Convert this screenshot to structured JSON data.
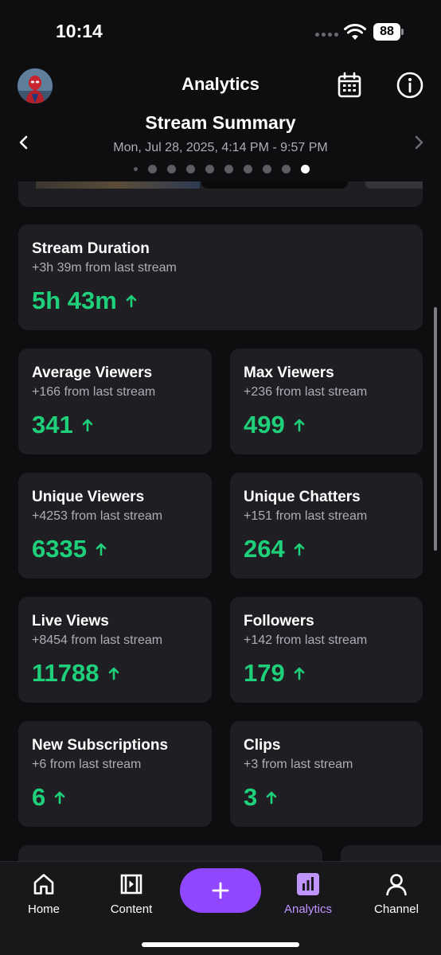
{
  "status_bar": {
    "time": "10:14",
    "battery": "88"
  },
  "header": {
    "title": "Analytics"
  },
  "summary": {
    "title": "Stream Summary",
    "date": "Mon, Jul 28, 2025, 4:14 PM - 9:57 PM",
    "page_count": 10,
    "active_page": 10
  },
  "stats": {
    "duration": {
      "label": "Stream Duration",
      "sub": "+3h 39m from last stream",
      "value": "5h 43m"
    },
    "avg_viewers": {
      "label": "Average Viewers",
      "sub": "+166 from last stream",
      "value": "341"
    },
    "max_viewers": {
      "label": "Max Viewers",
      "sub": "+236 from last stream",
      "value": "499"
    },
    "unique_viewers": {
      "label": "Unique Viewers",
      "sub": "+4253 from last stream",
      "value": "6335"
    },
    "unique_chatters": {
      "label": "Unique Chatters",
      "sub": "+151 from last stream",
      "value": "264"
    },
    "live_views": {
      "label": "Live Views",
      "sub": "+8454 from last stream",
      "value": "11788"
    },
    "followers": {
      "label": "Followers",
      "sub": "+142 from last stream",
      "value": "179"
    },
    "new_subs": {
      "label": "New Subscriptions",
      "sub": "+6 from last stream",
      "value": "6"
    },
    "clips": {
      "label": "Clips",
      "sub": "+3 from last stream",
      "value": "3"
    }
  },
  "tabs": {
    "home": "Home",
    "content": "Content",
    "analytics": "Analytics",
    "channel": "Channel"
  },
  "colors": {
    "background": "#0e0e10",
    "card": "#1f1f23",
    "positive": "#1fd07a",
    "accent": "#9147ff",
    "accent_light": "#bf94ff"
  },
  "icons": {
    "calendar": "calendar-icon",
    "info": "info-icon",
    "trend": "arrow-up-icon",
    "create": "plus-icon"
  }
}
